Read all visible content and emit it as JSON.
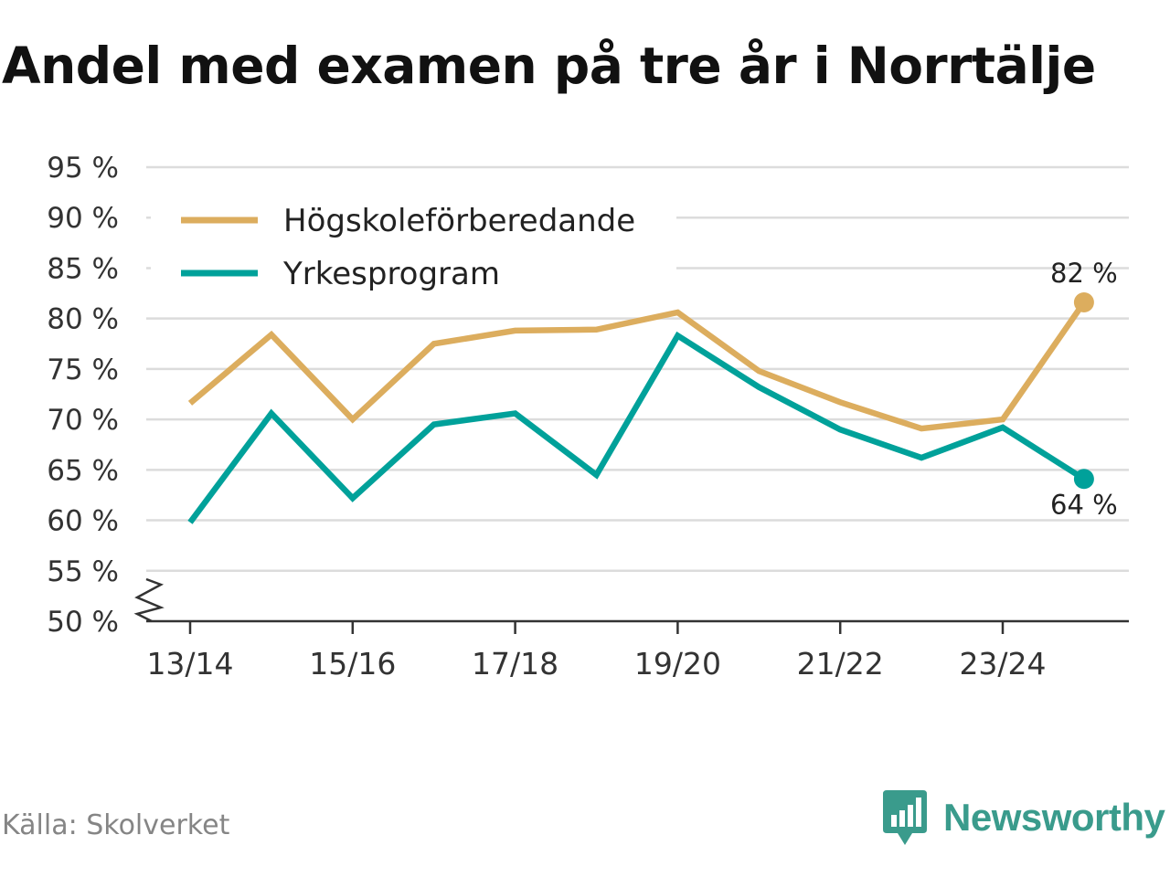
{
  "title": "Andel med examen på tre år i Norrtälje",
  "source": "Källa: Skolverket",
  "brand": {
    "name": "Newsworthy",
    "icon": "newsworthy-logo-icon",
    "color": "#3a9b8c"
  },
  "chart_data": {
    "type": "line",
    "title": "Andel med examen på tre år i Norrtälje",
    "xlabel": "",
    "ylabel": "",
    "ylim": [
      50,
      95
    ],
    "y_ticks": [
      50,
      55,
      60,
      65,
      70,
      75,
      80,
      85,
      90,
      95
    ],
    "y_tick_labels": [
      "50 %",
      "55 %",
      "60 %",
      "65 %",
      "70 %",
      "75 %",
      "80 %",
      "85 %",
      "90 %",
      "95 %"
    ],
    "y_axis_break": true,
    "grid": true,
    "legend": "top-left",
    "categories": [
      "13/14",
      "14/15",
      "15/16",
      "16/17",
      "17/18",
      "18/19",
      "19/20",
      "20/21",
      "21/22",
      "22/23",
      "23/24",
      "24/25"
    ],
    "x_tick_labels": [
      "13/14",
      "",
      "15/16",
      "",
      "17/18",
      "",
      "19/20",
      "",
      "21/22",
      "",
      "23/24",
      ""
    ],
    "series": [
      {
        "name": "Högskoleförberedande",
        "color": "#dcad5e",
        "values": [
          71.6,
          78.4,
          70.0,
          77.5,
          78.8,
          78.9,
          80.6,
          74.8,
          71.7,
          69.1,
          70.0,
          81.6
        ],
        "end_label": "82 %",
        "end_label_position": "above"
      },
      {
        "name": "Yrkesprogram",
        "color": "#00a19a",
        "values": [
          59.8,
          70.6,
          62.2,
          69.5,
          70.6,
          64.5,
          78.3,
          73.2,
          69.0,
          66.2,
          69.2,
          64.1
        ],
        "end_label": "64 %",
        "end_label_position": "below"
      }
    ]
  }
}
